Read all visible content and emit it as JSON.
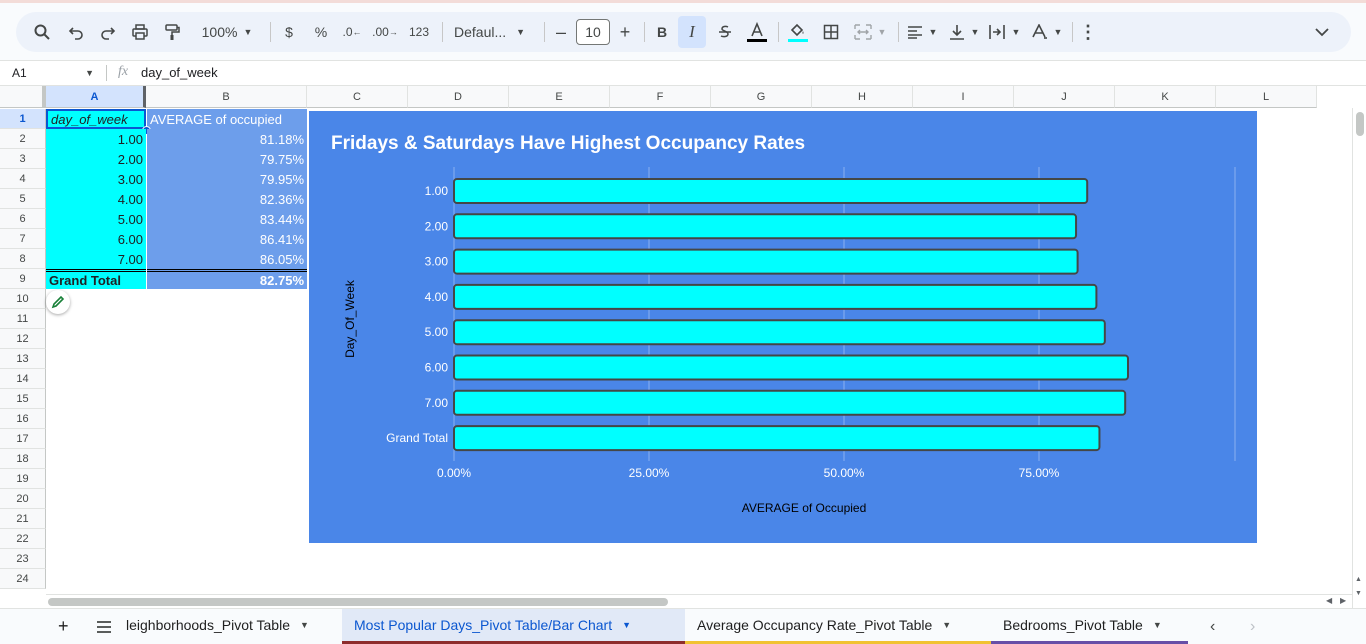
{
  "toolbar": {
    "zoom": "100%",
    "currency": "$",
    "percent": "%",
    "decrease_decimal": ".0",
    "increase_decimal": ".00",
    "number_format": "123",
    "font": "Defaul...",
    "font_size": "10",
    "bold": "B",
    "italic": "I"
  },
  "formula_bar": {
    "cell_ref": "A1",
    "fx": "fx",
    "content": "day_of_week"
  },
  "columns": [
    "A",
    "B",
    "C",
    "D",
    "E",
    "F",
    "G",
    "H",
    "I",
    "J",
    "K",
    "L"
  ],
  "rows": [
    "1",
    "2",
    "3",
    "4",
    "5",
    "6",
    "7",
    "8",
    "9",
    "10",
    "11",
    "12",
    "13",
    "14",
    "15",
    "16",
    "17",
    "18",
    "19",
    "20",
    "21",
    "22",
    "23",
    "24"
  ],
  "table": {
    "header_a": "day_of_week",
    "header_b": "AVERAGE of occupied",
    "days": [
      "1.00",
      "2.00",
      "3.00",
      "4.00",
      "5.00",
      "6.00",
      "7.00"
    ],
    "values": [
      "81.18%",
      "79.75%",
      "79.95%",
      "82.36%",
      "83.44%",
      "86.41%",
      "86.05%"
    ],
    "grand_total_label": "Grand Total",
    "grand_total_value": "82.75%"
  },
  "colors": {
    "cyan": "#00ffff",
    "chart_bg": "#4a86e8",
    "col_b_bg": "#6d9eeb",
    "selected": "#0b57d0"
  },
  "chart_data": {
    "type": "bar",
    "orientation": "horizontal",
    "title": "Fridays & Saturdays Have Highest Occupancy Rates",
    "xlabel": "AVERAGE of Occupied",
    "ylabel": "Day_Of_Week",
    "categories": [
      "1.00",
      "2.00",
      "3.00",
      "4.00",
      "5.00",
      "6.00",
      "7.00",
      "Grand Total"
    ],
    "values": [
      81.18,
      79.75,
      79.95,
      82.36,
      83.44,
      86.41,
      86.05,
      82.75
    ],
    "xticks": [
      "0.00%",
      "25.00%",
      "50.00%",
      "75.00%"
    ],
    "xlim": [
      0,
      100
    ],
    "grid": true,
    "bar_color": "#00ffff"
  },
  "sheets": {
    "tabs": [
      "leighborhoods_Pivot Table",
      "Most Popular Days_Pivot Table/Bar Chart",
      "Average Occupancy Rate_Pivot Table",
      "Bedrooms_Pivot Table"
    ],
    "active": 1
  }
}
